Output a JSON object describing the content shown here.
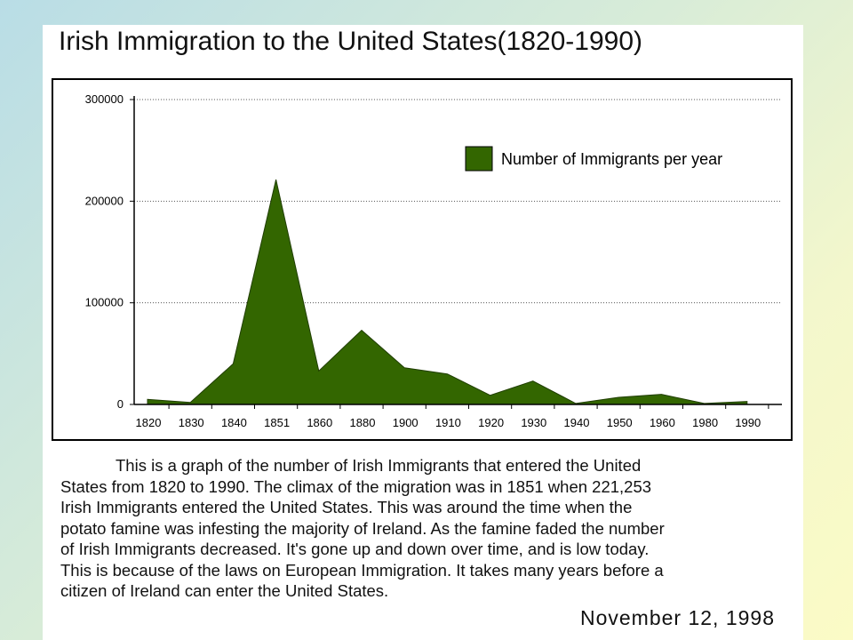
{
  "chart_data": {
    "type": "area",
    "title": "Irish Immigration to the United States(1820-1990)",
    "xlabel": "",
    "ylabel": "",
    "ylim": [
      0,
      300000
    ],
    "y_ticks": [
      "0",
      "100000",
      "200000",
      "300000"
    ],
    "categories": [
      "1820",
      "1830",
      "1840",
      "1851",
      "1860",
      "1880",
      "1900",
      "1910",
      "1920",
      "1930",
      "1940",
      "1950",
      "1960",
      "1980",
      "1990"
    ],
    "series": [
      {
        "name": "Number of Immigrants per year",
        "color": "#336600",
        "points": [
          {
            "x": "1820",
            "y": 5000
          },
          {
            "x": "1830",
            "y": 2000
          },
          {
            "x": "1840",
            "y": 40000
          },
          {
            "x": "1851",
            "y": 221253
          },
          {
            "x": "1860",
            "y": 33000
          },
          {
            "x": "1880",
            "y": 73000
          },
          {
            "x": "1900",
            "y": 36000
          },
          {
            "x": "1910",
            "y": 30000
          },
          {
            "x": "1920",
            "y": 9000
          },
          {
            "x": "1930",
            "y": 23000
          },
          {
            "x": "1940",
            "y": 1000
          },
          {
            "x": "1950",
            "y": 7000
          },
          {
            "x": "1960",
            "y": 10000
          },
          {
            "x": "1980",
            "y": 1000
          },
          {
            "x": "1990",
            "y": 3000
          }
        ]
      }
    ],
    "grid": "horizontal dotted",
    "legend_position": "top-right"
  },
  "description": {
    "lines": [
      "This is a graph of the number of Irish Immigrants that entered the United",
      "States from 1820 to 1990.  The climax of the migration was in 1851 when 221,253",
      "Irish Immigrants entered the United States.  This was around the time when the",
      "potato famine was infesting the majority of Ireland.  As the famine faded the number",
      "of Irish Immigrants decreased.  It's gone up and down over time, and is low today.",
      "This is because of the laws on European Immigration.  It takes many years before a",
      "citizen of Ireland can enter the United States."
    ]
  },
  "date": "November 12, 1998"
}
